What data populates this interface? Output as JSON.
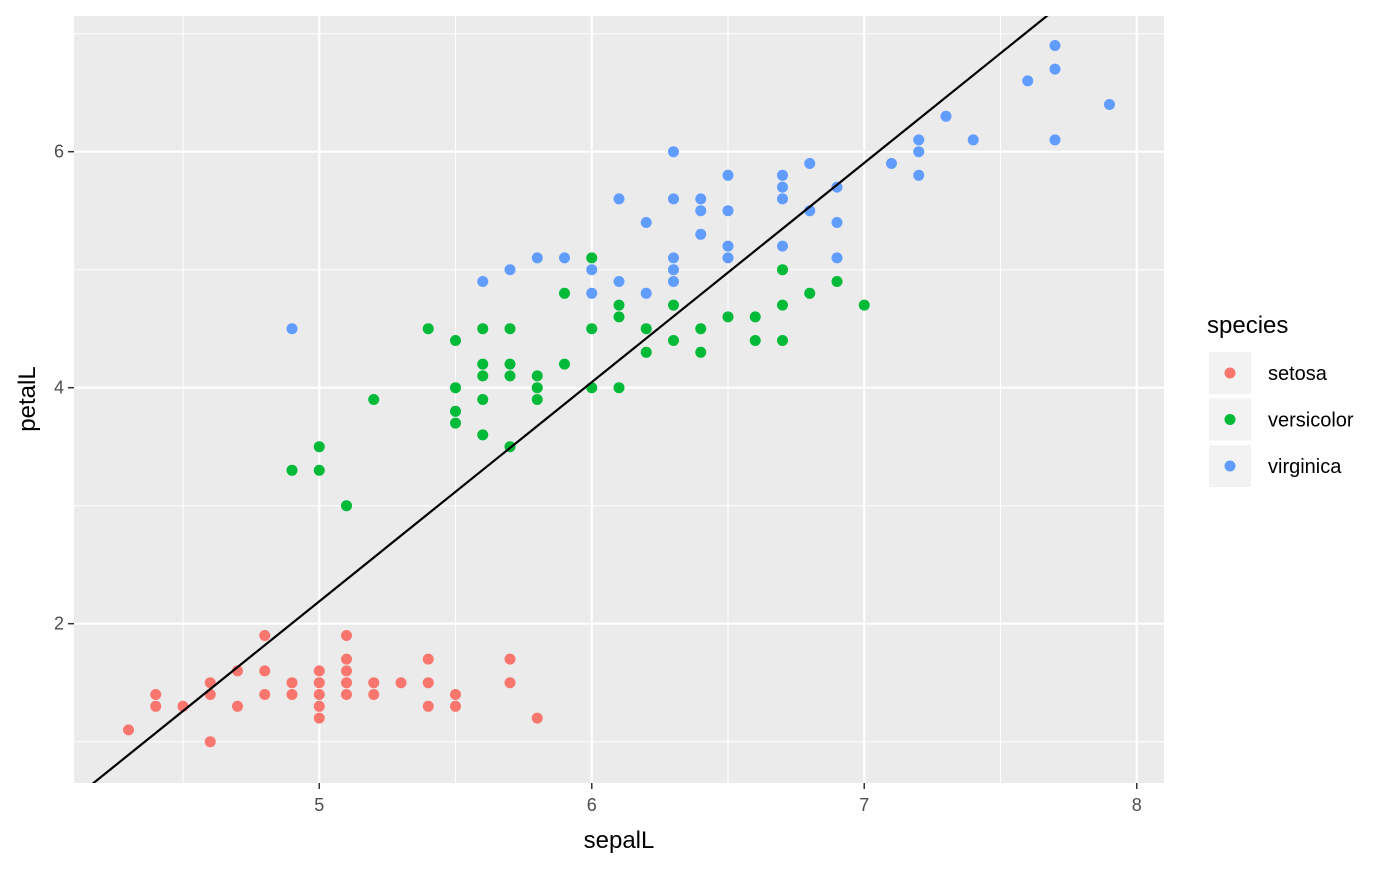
{
  "chart_data": {
    "type": "scatter",
    "title": "",
    "xlabel": "sepalL",
    "ylabel": "petalL",
    "xlim": [
      4.1,
      8.1
    ],
    "ylim": [
      0.65,
      7.15
    ],
    "x_ticks": [
      5,
      6,
      7,
      8
    ],
    "y_ticks": [
      2,
      4,
      6
    ],
    "x_tick_labels": [
      "5",
      "6",
      "7",
      "8"
    ],
    "y_tick_labels": [
      "2",
      "4",
      "6"
    ],
    "x_minor_ticks": [
      4.5,
      5.5,
      6.5,
      7.5
    ],
    "y_minor_ticks": [
      1,
      3,
      5,
      7
    ],
    "grid": true,
    "legend": {
      "title": "species",
      "position": "right"
    },
    "trend_line": {
      "slope": 1.858,
      "intercept": -7.101,
      "color": "#000000"
    },
    "series": [
      {
        "name": "setosa",
        "color": "#F8766D",
        "points": [
          [
            4.3,
            1.1
          ],
          [
            4.4,
            1.4
          ],
          [
            4.4,
            1.3
          ],
          [
            4.5,
            1.3
          ],
          [
            4.6,
            1.5
          ],
          [
            4.6,
            1.4
          ],
          [
            4.6,
            1.0
          ],
          [
            4.7,
            1.6
          ],
          [
            4.7,
            1.3
          ],
          [
            4.8,
            1.9
          ],
          [
            4.8,
            1.6
          ],
          [
            4.8,
            1.4
          ],
          [
            4.9,
            1.5
          ],
          [
            4.9,
            1.4
          ],
          [
            5.0,
            1.6
          ],
          [
            5.0,
            1.5
          ],
          [
            5.0,
            1.4
          ],
          [
            5.0,
            1.3
          ],
          [
            5.0,
            1.2
          ],
          [
            5.1,
            1.9
          ],
          [
            5.1,
            1.7
          ],
          [
            5.1,
            1.6
          ],
          [
            5.1,
            1.5
          ],
          [
            5.1,
            1.4
          ],
          [
            5.2,
            1.5
          ],
          [
            5.2,
            1.4
          ],
          [
            5.3,
            1.5
          ],
          [
            5.4,
            1.7
          ],
          [
            5.4,
            1.5
          ],
          [
            5.4,
            1.3
          ],
          [
            5.5,
            1.4
          ],
          [
            5.5,
            1.3
          ],
          [
            5.7,
            1.7
          ],
          [
            5.7,
            1.5
          ],
          [
            5.8,
            1.2
          ]
        ]
      },
      {
        "name": "versicolor",
        "color": "#00BA38",
        "points": [
          [
            4.9,
            3.3
          ],
          [
            5.0,
            3.5
          ],
          [
            5.0,
            3.3
          ],
          [
            5.1,
            3.0
          ],
          [
            5.2,
            3.9
          ],
          [
            5.4,
            4.5
          ],
          [
            5.5,
            4.4
          ],
          [
            5.5,
            4.0
          ],
          [
            5.5,
            3.8
          ],
          [
            5.5,
            3.7
          ],
          [
            5.6,
            4.5
          ],
          [
            5.6,
            4.2
          ],
          [
            5.6,
            4.1
          ],
          [
            5.6,
            3.9
          ],
          [
            5.6,
            3.6
          ],
          [
            5.7,
            4.5
          ],
          [
            5.7,
            4.2
          ],
          [
            5.7,
            4.1
          ],
          [
            5.7,
            3.5
          ],
          [
            5.8,
            4.1
          ],
          [
            5.8,
            4.0
          ],
          [
            5.8,
            3.9
          ],
          [
            5.9,
            4.8
          ],
          [
            5.9,
            4.2
          ],
          [
            6.0,
            5.1
          ],
          [
            6.0,
            4.5
          ],
          [
            6.0,
            4.0
          ],
          [
            6.1,
            4.7
          ],
          [
            6.1,
            4.6
          ],
          [
            6.1,
            4.0
          ],
          [
            6.2,
            4.5
          ],
          [
            6.2,
            4.3
          ],
          [
            6.3,
            4.7
          ],
          [
            6.3,
            4.4
          ],
          [
            6.4,
            4.5
          ],
          [
            6.4,
            4.3
          ],
          [
            6.5,
            4.6
          ],
          [
            6.6,
            4.6
          ],
          [
            6.6,
            4.4
          ],
          [
            6.7,
            5.0
          ],
          [
            6.7,
            4.7
          ],
          [
            6.7,
            4.4
          ],
          [
            6.8,
            4.8
          ],
          [
            6.9,
            4.9
          ],
          [
            7.0,
            4.7
          ]
        ]
      },
      {
        "name": "virginica",
        "color": "#619CFF",
        "points": [
          [
            4.9,
            4.5
          ],
          [
            5.6,
            4.9
          ],
          [
            5.7,
            5.0
          ],
          [
            5.8,
            5.1
          ],
          [
            5.9,
            5.1
          ],
          [
            6.0,
            5.0
          ],
          [
            6.0,
            4.8
          ],
          [
            6.1,
            5.6
          ],
          [
            6.1,
            4.9
          ],
          [
            6.2,
            5.4
          ],
          [
            6.2,
            4.8
          ],
          [
            6.3,
            6.0
          ],
          [
            6.3,
            5.6
          ],
          [
            6.3,
            5.1
          ],
          [
            6.3,
            5.0
          ],
          [
            6.3,
            4.9
          ],
          [
            6.4,
            5.6
          ],
          [
            6.4,
            5.5
          ],
          [
            6.4,
            5.3
          ],
          [
            6.5,
            5.8
          ],
          [
            6.5,
            5.5
          ],
          [
            6.5,
            5.2
          ],
          [
            6.5,
            5.1
          ],
          [
            6.7,
            5.8
          ],
          [
            6.7,
            5.7
          ],
          [
            6.7,
            5.6
          ],
          [
            6.7,
            5.2
          ],
          [
            6.8,
            5.9
          ],
          [
            6.8,
            5.5
          ],
          [
            6.9,
            5.7
          ],
          [
            6.9,
            5.4
          ],
          [
            6.9,
            5.1
          ],
          [
            7.1,
            5.9
          ],
          [
            7.2,
            6.1
          ],
          [
            7.2,
            6.0
          ],
          [
            7.2,
            5.8
          ],
          [
            7.3,
            6.3
          ],
          [
            7.4,
            6.1
          ],
          [
            7.6,
            6.6
          ],
          [
            7.7,
            6.9
          ],
          [
            7.7,
            6.7
          ],
          [
            7.7,
            6.1
          ],
          [
            7.9,
            6.4
          ]
        ]
      }
    ]
  }
}
